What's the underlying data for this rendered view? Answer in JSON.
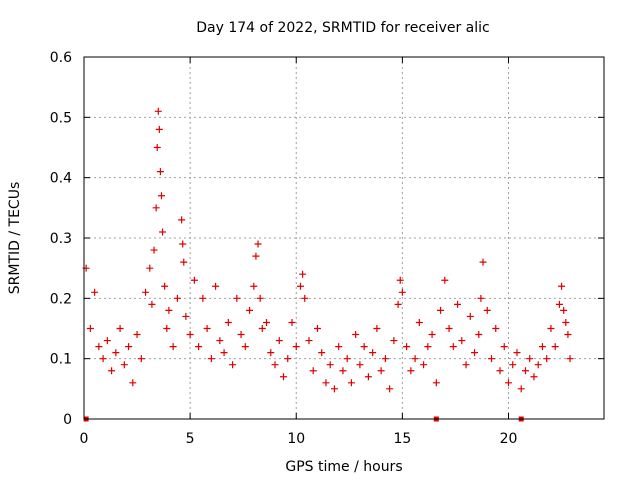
{
  "chart_data": {
    "type": "scatter",
    "title": "Day 174 of 2022, SRMTID for receiver alic",
    "xlabel": "GPS time / hours",
    "ylabel": "SRMTID / TECUs",
    "xlim": [
      0,
      24.5
    ],
    "ylim": [
      0,
      0.6
    ],
    "xticks": [
      0,
      5,
      10,
      15,
      20
    ],
    "xtick_labels": [
      "0",
      "5",
      "10",
      "15",
      "20"
    ],
    "yticks": [
      0,
      0.1,
      0.2,
      0.3,
      0.4,
      0.5,
      0.6
    ],
    "ytick_labels": [
      "0",
      "0.1",
      "0.2",
      "0.3",
      "0.4",
      "0.5",
      "0.6"
    ],
    "grid": true,
    "marker": "+",
    "color": "#e00000",
    "gap_marker_x": [
      0.1,
      16.6,
      20.6
    ],
    "series": [
      {
        "name": "SRMTID",
        "x": [
          0.1,
          0.3,
          0.5,
          0.7,
          0.9,
          1.1,
          1.3,
          1.5,
          1.7,
          1.9,
          2.1,
          2.3,
          2.5,
          2.7,
          2.9,
          3.1,
          3.2,
          3.3,
          3.4,
          3.45,
          3.5,
          3.55,
          3.6,
          3.65,
          3.7,
          3.8,
          3.9,
          4.0,
          4.2,
          4.4,
          4.6,
          4.65,
          4.7,
          4.8,
          5.0,
          5.2,
          5.4,
          5.6,
          5.8,
          6.0,
          6.2,
          6.4,
          6.6,
          6.8,
          7.0,
          7.2,
          7.4,
          7.6,
          7.8,
          8.0,
          8.1,
          8.2,
          8.3,
          8.4,
          8.6,
          8.8,
          9.0,
          9.2,
          9.4,
          9.6,
          9.8,
          10.0,
          10.2,
          10.3,
          10.4,
          10.6,
          10.8,
          11.0,
          11.2,
          11.4,
          11.6,
          11.8,
          12.0,
          12.2,
          12.4,
          12.6,
          12.8,
          13.0,
          13.2,
          13.4,
          13.6,
          13.8,
          14.0,
          14.2,
          14.4,
          14.6,
          14.8,
          14.9,
          15.0,
          15.2,
          15.4,
          15.6,
          15.8,
          16.0,
          16.2,
          16.4,
          16.6,
          16.8,
          17.0,
          17.2,
          17.4,
          17.6,
          17.8,
          18.0,
          18.2,
          18.4,
          18.6,
          18.7,
          18.8,
          19.0,
          19.2,
          19.4,
          19.6,
          19.8,
          20.0,
          20.2,
          20.4,
          20.6,
          20.8,
          21.0,
          21.2,
          21.4,
          21.6,
          21.8,
          22.0,
          22.2,
          22.4,
          22.5,
          22.6,
          22.7,
          22.8,
          22.9
        ],
        "values": [
          0.25,
          0.15,
          0.21,
          0.12,
          0.1,
          0.13,
          0.08,
          0.11,
          0.15,
          0.09,
          0.12,
          0.06,
          0.14,
          0.1,
          0.21,
          0.25,
          0.19,
          0.28,
          0.35,
          0.45,
          0.51,
          0.48,
          0.41,
          0.37,
          0.31,
          0.22,
          0.15,
          0.18,
          0.12,
          0.2,
          0.33,
          0.29,
          0.26,
          0.17,
          0.14,
          0.23,
          0.12,
          0.2,
          0.15,
          0.1,
          0.22,
          0.13,
          0.11,
          0.16,
          0.09,
          0.2,
          0.14,
          0.12,
          0.18,
          0.22,
          0.27,
          0.29,
          0.2,
          0.15,
          0.16,
          0.11,
          0.09,
          0.13,
          0.07,
          0.1,
          0.16,
          0.12,
          0.22,
          0.24,
          0.2,
          0.13,
          0.08,
          0.15,
          0.11,
          0.06,
          0.09,
          0.05,
          0.12,
          0.08,
          0.1,
          0.06,
          0.14,
          0.09,
          0.12,
          0.07,
          0.11,
          0.15,
          0.08,
          0.1,
          0.05,
          0.13,
          0.19,
          0.23,
          0.21,
          0.12,
          0.08,
          0.1,
          0.16,
          0.09,
          0.12,
          0.14,
          0.06,
          0.18,
          0.23,
          0.15,
          0.12,
          0.19,
          0.13,
          0.09,
          0.17,
          0.11,
          0.14,
          0.2,
          0.26,
          0.18,
          0.1,
          0.15,
          0.08,
          0.12,
          0.06,
          0.09,
          0.11,
          0.05,
          0.08,
          0.1,
          0.07,
          0.09,
          0.12,
          0.1,
          0.15,
          0.12,
          0.19,
          0.22,
          0.18,
          0.16,
          0.14,
          0.1
        ]
      }
    ]
  }
}
